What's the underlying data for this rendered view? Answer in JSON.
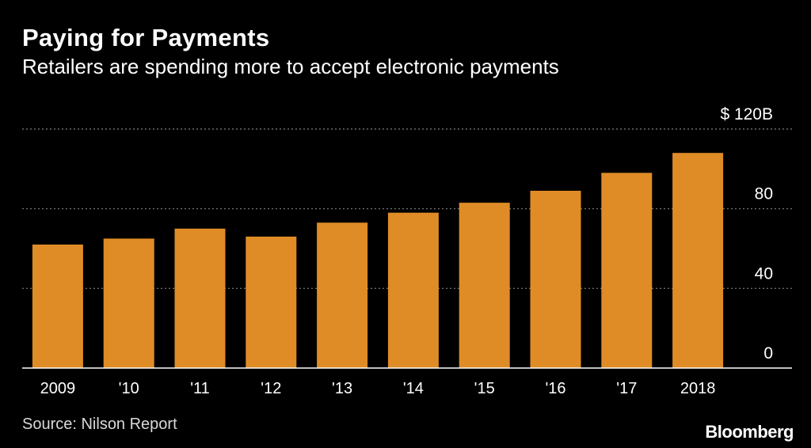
{
  "header": {
    "title": "Paying for Payments",
    "subtitle": "Retailers are spending more to accept electronic payments"
  },
  "footer": {
    "source": "Source: Nilson Report",
    "brand": "Bloomberg"
  },
  "colors": {
    "background": "#000000",
    "bar": "#df8c27",
    "grid": "#7f7f7f",
    "text": "#ffffff"
  },
  "chart_data": {
    "type": "bar",
    "title": "Paying for Payments",
    "subtitle": "Retailers are spending more to accept electronic payments",
    "categories": [
      "2009",
      "'10",
      "'11",
      "'12",
      "'13",
      "'14",
      "'15",
      "'16",
      "'17",
      "2018"
    ],
    "values": [
      62,
      65,
      70,
      66,
      73,
      78,
      83,
      89,
      98,
      108
    ],
    "ylim": [
      0,
      120
    ],
    "yticks": [
      0,
      40,
      80,
      120
    ],
    "ytick_labels": [
      "0",
      "40",
      "80",
      "$ 120B"
    ],
    "y_axis_position": "right",
    "grid": true,
    "legend": "none"
  }
}
